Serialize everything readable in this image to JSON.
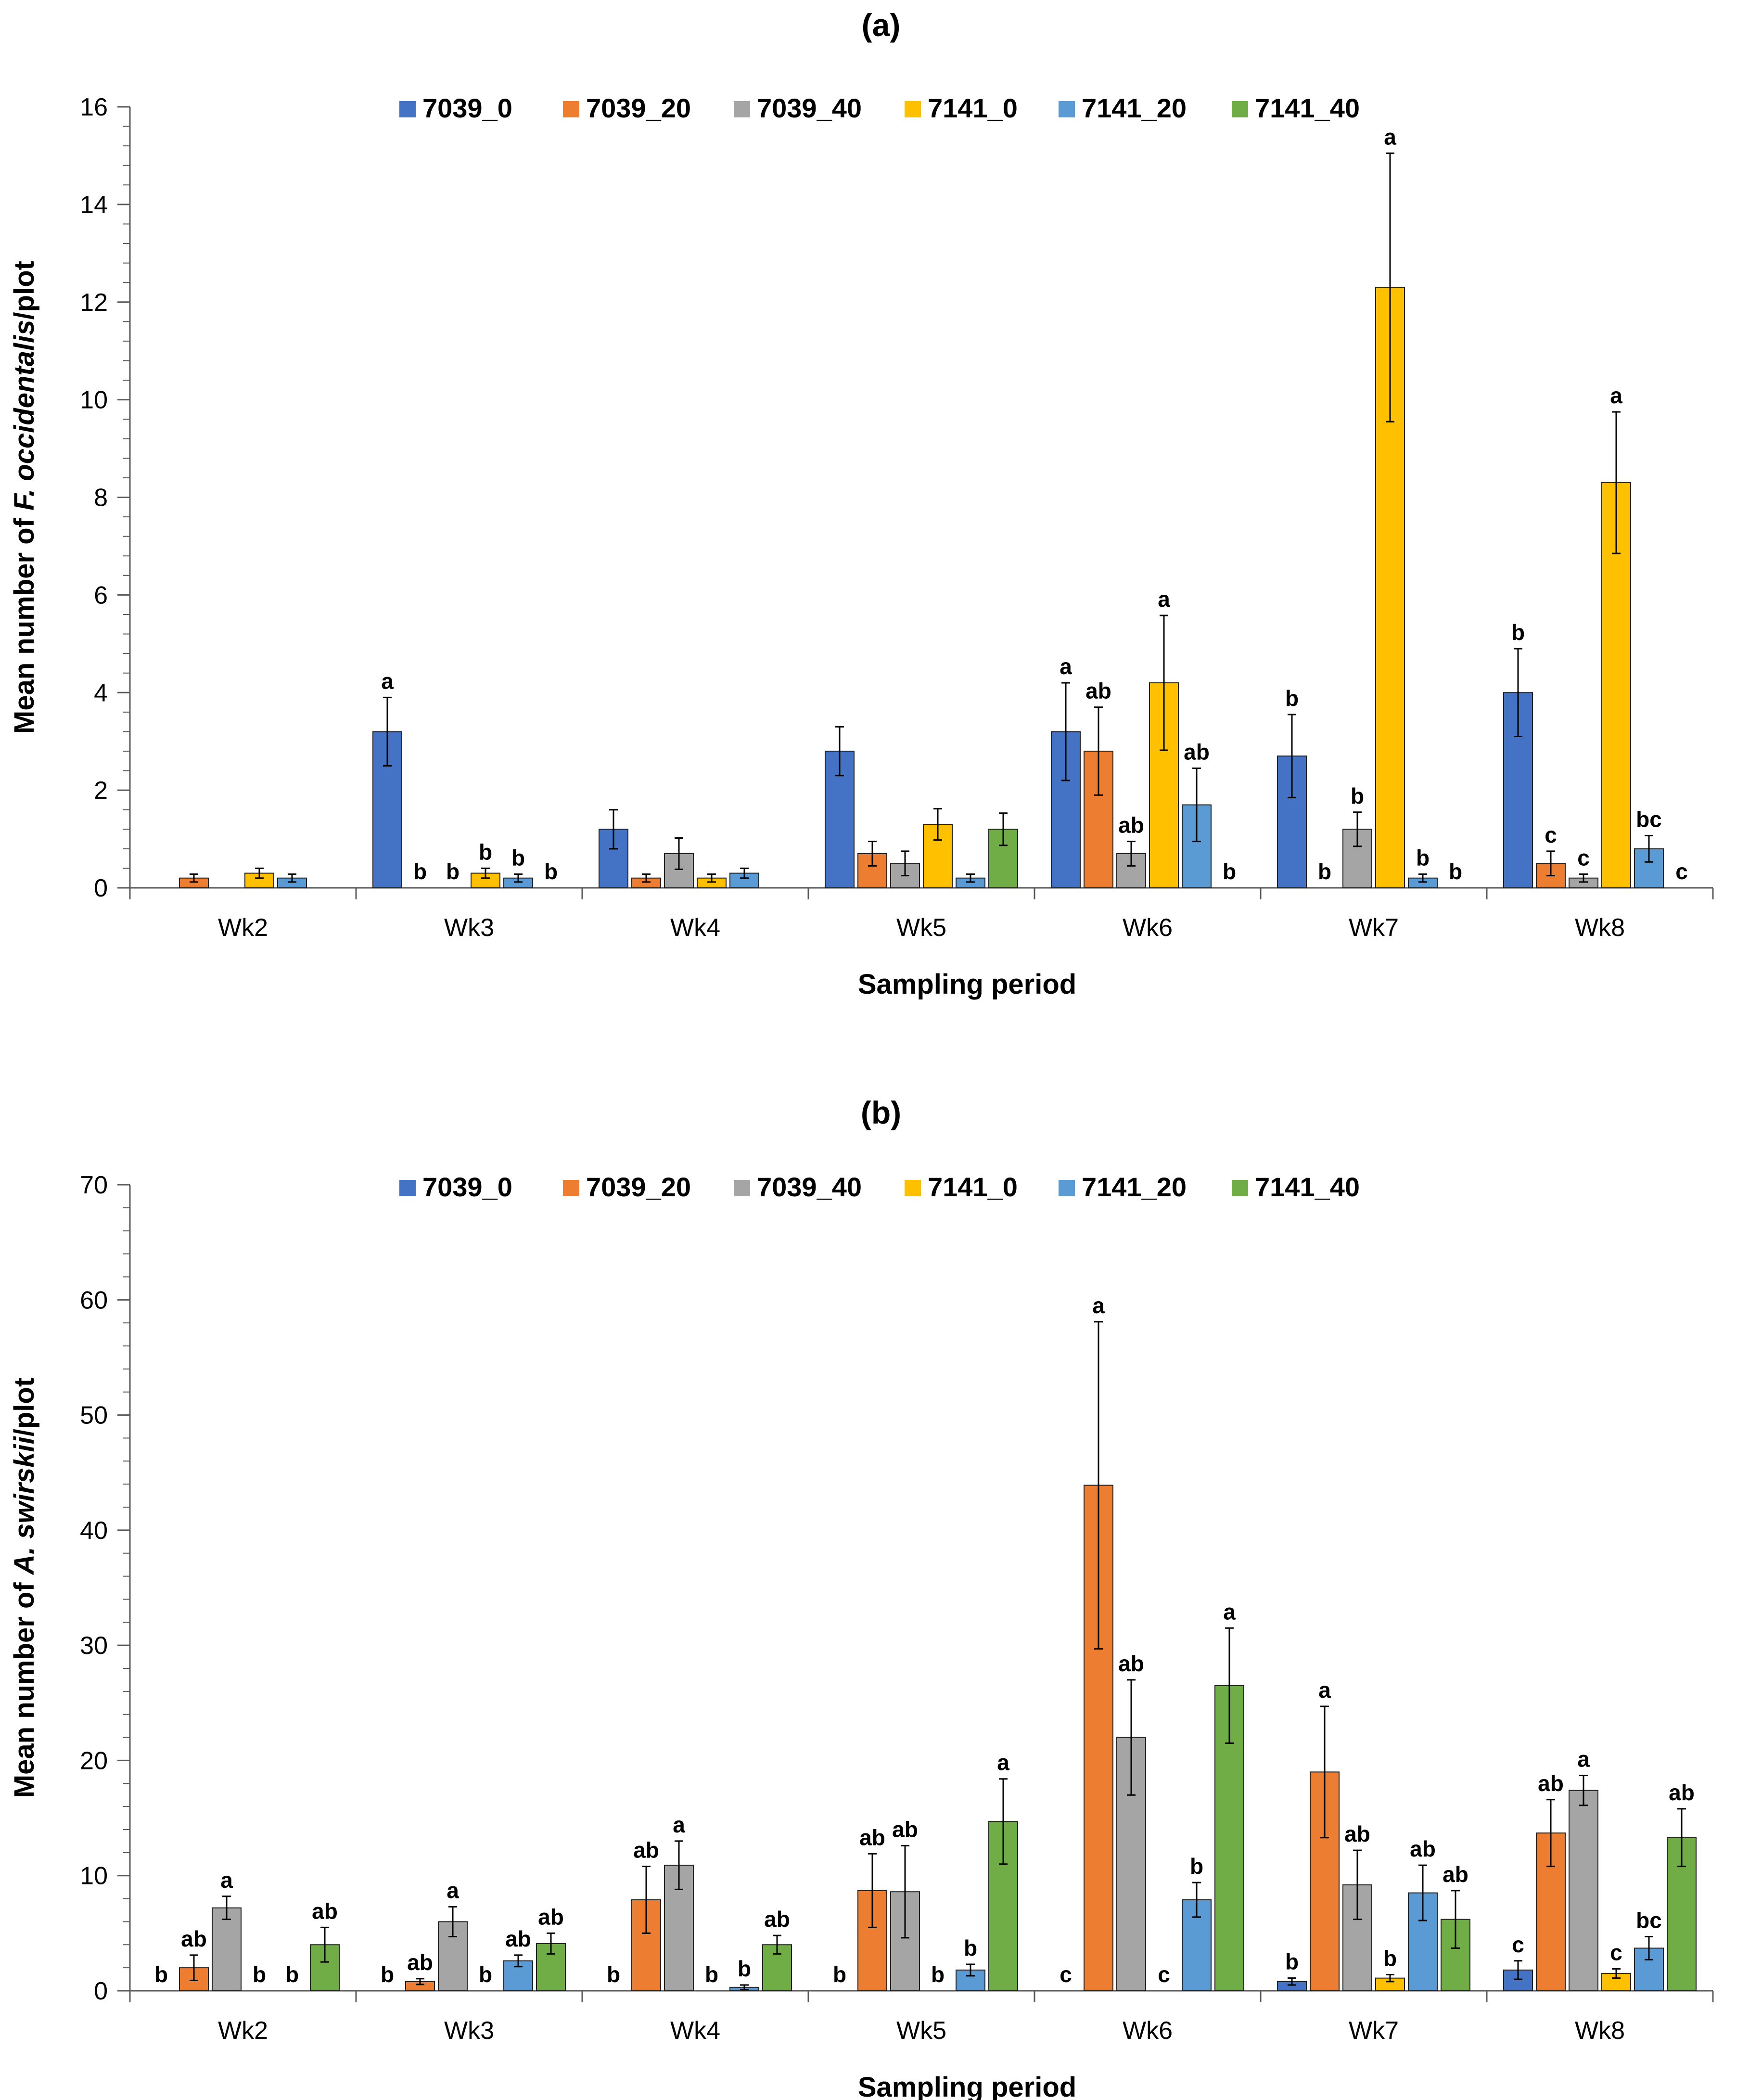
{
  "chart_data": [
    {
      "type": "bar",
      "title": "(a)",
      "xlabel": "Sampling period",
      "ylabel_prefix": "Mean number of ",
      "ylabel_species": "F. occidentalis",
      "ylabel_suffix": "/plot",
      "ylim": [
        0,
        16
      ],
      "yticks": [
        0,
        2,
        4,
        6,
        8,
        10,
        12,
        14,
        16
      ],
      "categories": [
        "Wk2",
        "Wk3",
        "Wk4",
        "Wk5",
        "Wk6",
        "Wk7",
        "Wk8"
      ],
      "legend_position": "top-center",
      "series": [
        {
          "name": "7039_0",
          "color": "#4472C4",
          "values": [
            0,
            3.2,
            1.2,
            2.8,
            3.2,
            2.7,
            4.0
          ],
          "errors": [
            0,
            0.7,
            0.4,
            0.5,
            1.0,
            0.85,
            0.9
          ],
          "labels": [
            "",
            "a",
            "",
            "",
            "a",
            "b",
            "b"
          ]
        },
        {
          "name": "7039_20",
          "color": "#ED7D31",
          "values": [
            0.2,
            0,
            0.2,
            0.7,
            2.8,
            0,
            0.5
          ],
          "errors": [
            0.08,
            0,
            0.08,
            0.25,
            0.9,
            0,
            0.25
          ],
          "labels": [
            "",
            "b",
            "",
            "",
            "ab",
            "b",
            "c"
          ]
        },
        {
          "name": "7039_40",
          "color": "#A5A5A5",
          "values": [
            0,
            0,
            0.7,
            0.5,
            0.7,
            1.2,
            0.2
          ],
          "errors": [
            0,
            0,
            0.32,
            0.25,
            0.25,
            0.35,
            0.08
          ],
          "labels": [
            "",
            "b",
            "",
            "",
            "ab",
            "b",
            "c"
          ]
        },
        {
          "name": "7141_0",
          "color": "#FFC000",
          "values": [
            0.3,
            0.3,
            0.2,
            1.3,
            4.2,
            12.3,
            8.3
          ],
          "errors": [
            0.1,
            0.1,
            0.08,
            0.32,
            1.38,
            2.75,
            1.45
          ],
          "labels": [
            "",
            "b",
            "",
            "",
            "a",
            "a",
            "a"
          ]
        },
        {
          "name": "7141_20",
          "color": "#5B9BD5",
          "values": [
            0.2,
            0.2,
            0.3,
            0.2,
            1.7,
            0.2,
            0.8
          ],
          "errors": [
            0.08,
            0.08,
            0.1,
            0.08,
            0.75,
            0.08,
            0.27
          ],
          "labels": [
            "",
            "b",
            "",
            "",
            "ab",
            "b",
            "bc"
          ]
        },
        {
          "name": "7141_40",
          "color": "#70AD47",
          "values": [
            0,
            0,
            0,
            1.2,
            0,
            0,
            0
          ],
          "errors": [
            0,
            0,
            0,
            0.33,
            0,
            0,
            0
          ],
          "labels": [
            "",
            "b",
            "",
            "",
            "b",
            "b",
            "c"
          ]
        }
      ]
    },
    {
      "type": "bar",
      "title": "(b)",
      "xlabel": "Sampling period",
      "ylabel_prefix": "Mean number of ",
      "ylabel_species": "A. swirskii",
      "ylabel_suffix": "/plot",
      "ylim": [
        0,
        70
      ],
      "yticks": [
        0,
        10,
        20,
        30,
        40,
        50,
        60,
        70
      ],
      "categories": [
        "Wk2",
        "Wk3",
        "Wk4",
        "Wk5",
        "Wk6",
        "Wk7",
        "Wk8"
      ],
      "legend_position": "top-center",
      "series": [
        {
          "name": "7039_0",
          "color": "#4472C4",
          "values": [
            0,
            0,
            0,
            0,
            0,
            0.8,
            1.8
          ],
          "errors": [
            0,
            0,
            0,
            0,
            0,
            0.3,
            0.8
          ],
          "labels": [
            "b",
            "b",
            "b",
            "b",
            "c",
            "b",
            "c"
          ]
        },
        {
          "name": "7039_20",
          "color": "#ED7D31",
          "values": [
            2.0,
            0.8,
            7.9,
            8.7,
            43.9,
            19.0,
            13.7
          ],
          "errors": [
            1.1,
            0.25,
            2.9,
            3.2,
            14.2,
            5.7,
            2.9
          ],
          "labels": [
            "ab",
            "ab",
            "ab",
            "ab",
            "a",
            "a",
            "ab"
          ]
        },
        {
          "name": "7039_40",
          "color": "#A5A5A5",
          "values": [
            7.2,
            6.0,
            10.9,
            8.6,
            22.0,
            9.2,
            17.4
          ],
          "errors": [
            1.0,
            1.3,
            2.1,
            4.0,
            5.0,
            3.0,
            1.3
          ],
          "labels": [
            "a",
            "a",
            "a",
            "ab",
            "ab",
            "ab",
            "a"
          ]
        },
        {
          "name": "7141_0",
          "color": "#FFC000",
          "values": [
            0,
            0,
            0,
            0,
            0,
            1.1,
            1.5
          ],
          "errors": [
            0,
            0,
            0,
            0,
            0,
            0.3,
            0.4
          ],
          "labels": [
            "b",
            "b",
            "b",
            "b",
            "c",
            "b",
            "c"
          ]
        },
        {
          "name": "7141_20",
          "color": "#5B9BD5",
          "values": [
            0,
            2.6,
            0.3,
            1.8,
            7.9,
            8.5,
            3.7
          ],
          "errors": [
            0,
            0.5,
            0.2,
            0.5,
            1.5,
            2.4,
            1.0
          ],
          "labels": [
            "b",
            "ab",
            "b",
            "b",
            "b",
            "ab",
            "bc"
          ]
        },
        {
          "name": "7141_40",
          "color": "#70AD47",
          "values": [
            4.0,
            4.1,
            4.0,
            14.7,
            26.5,
            6.2,
            13.3
          ],
          "errors": [
            1.5,
            0.9,
            0.8,
            3.7,
            5.0,
            2.5,
            2.5
          ],
          "labels": [
            "ab",
            "ab",
            "ab",
            "a",
            "a",
            "ab",
            "ab"
          ]
        }
      ]
    }
  ]
}
